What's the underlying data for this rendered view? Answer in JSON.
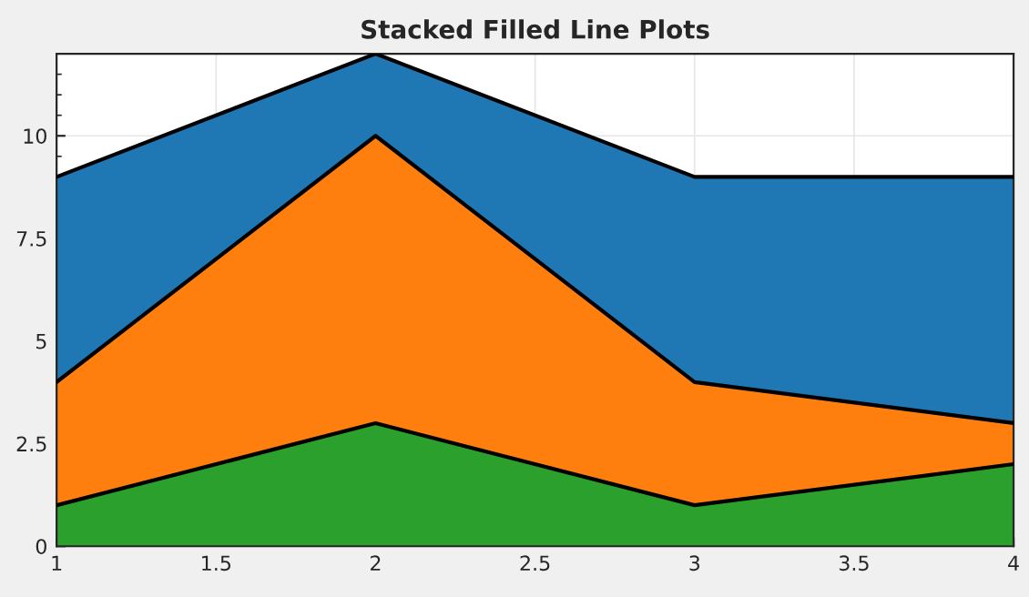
{
  "chart_data": {
    "type": "area",
    "title": "Stacked Filled Line Plots",
    "stacked": true,
    "x": [
      1,
      2,
      3,
      4
    ],
    "series": [
      {
        "color": "#2ca02c",
        "values": [
          1,
          3,
          1,
          2
        ]
      },
      {
        "color": "#ff7f0e",
        "values": [
          3,
          7,
          3,
          1
        ]
      },
      {
        "color": "#1f77b4",
        "values": [
          5,
          2,
          5,
          6
        ]
      }
    ],
    "xlim": [
      1,
      4
    ],
    "xticks": [
      1,
      1.5,
      2,
      2.5,
      3,
      3.5,
      4
    ],
    "ylim": [
      0,
      12
    ],
    "yticks": [
      0,
      2.5,
      5,
      7.5,
      10
    ],
    "grid": true,
    "legend": false
  }
}
